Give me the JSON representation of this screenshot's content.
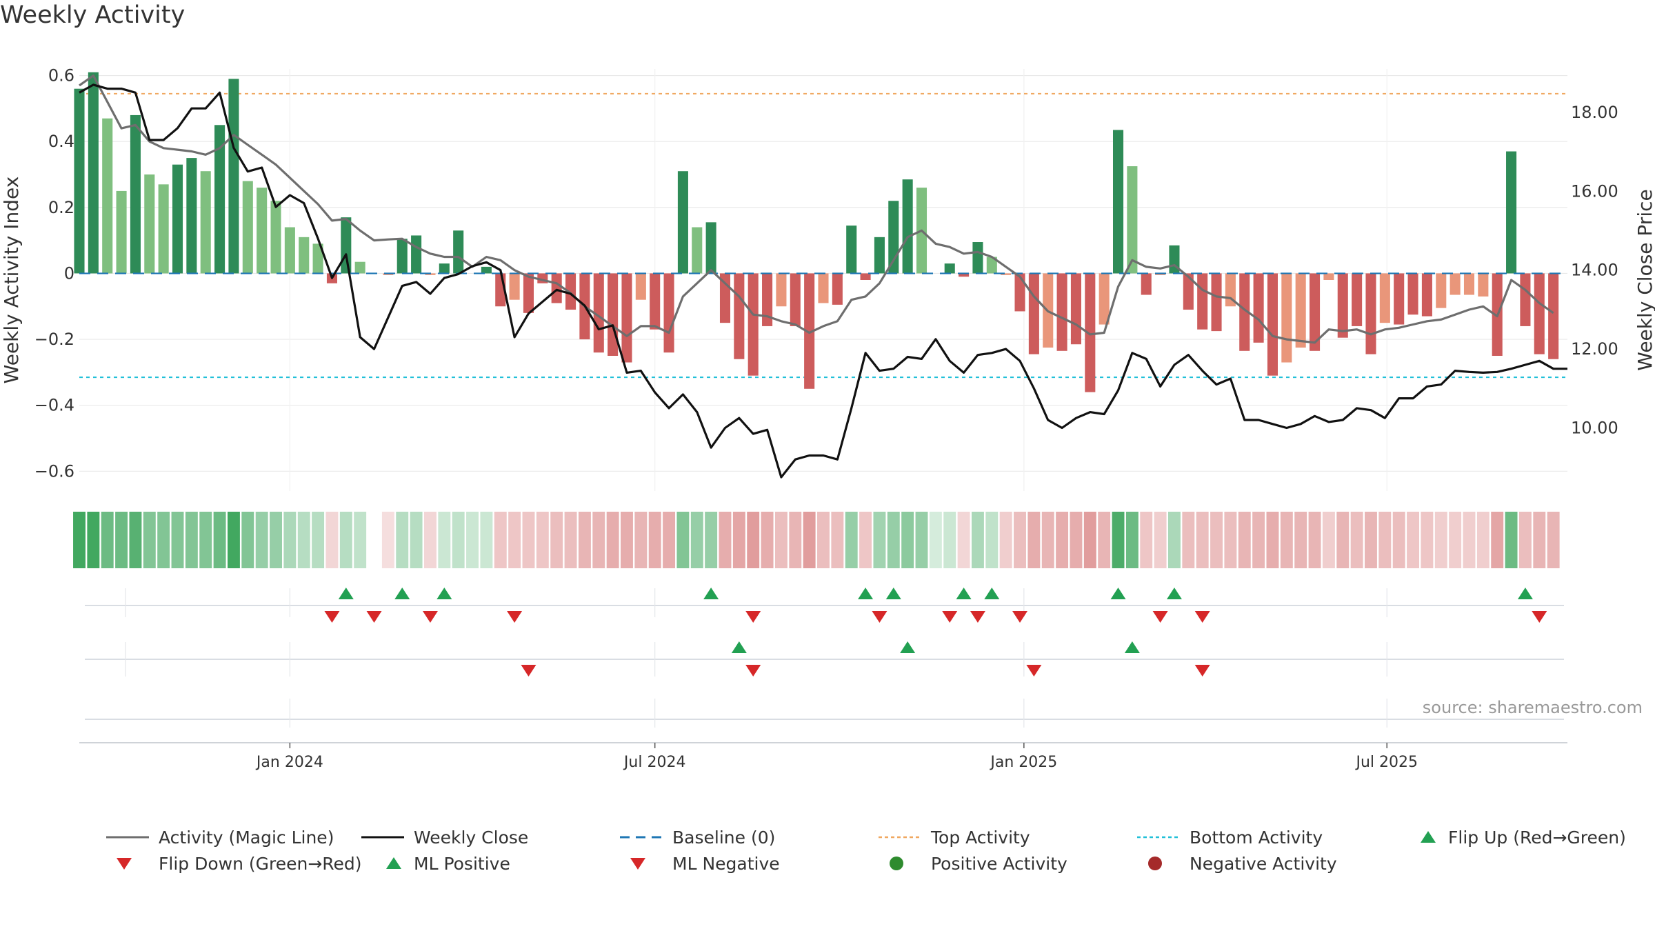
{
  "title": "Weekly Activity",
  "source_label": "source: sharemaestro.com",
  "colors": {
    "dark_green": "#2e8b57",
    "light_green": "#7fbf7f",
    "dark_red": "#cd5c5c",
    "light_red": "#e9967a",
    "magic_line": "#6e6e6e",
    "close_line": "#111111",
    "baseline": "#1f77b4",
    "top_activity": "#f0a860",
    "bottom_activity": "#22c0d8",
    "flip_up": "#22a052",
    "flip_down": "#d62728",
    "positive_dot": "#2e8b2e",
    "negative_dot": "#a52a2a"
  },
  "legend": [
    {
      "key": "magic",
      "label": "Activity (Magic Line)",
      "symbol": "line-solid-gray"
    },
    {
      "key": "close",
      "label": "Weekly Close",
      "symbol": "line-solid-black"
    },
    {
      "key": "baseline",
      "label": "Baseline (0)",
      "symbol": "line-dashed-blue"
    },
    {
      "key": "top",
      "label": "Top Activity",
      "symbol": "line-dotted-orange"
    },
    {
      "key": "bottom",
      "label": "Bottom Activity",
      "symbol": "line-dotted-cyan"
    },
    {
      "key": "flipup",
      "label": "Flip Up (Red→Green)",
      "symbol": "triangle-up-green"
    },
    {
      "key": "flipdown",
      "label": "Flip Down (Green→Red)",
      "symbol": "triangle-down-red"
    },
    {
      "key": "mlpos",
      "label": "ML Positive",
      "symbol": "triangle-up-green"
    },
    {
      "key": "mlneg",
      "label": "ML Negative",
      "symbol": "triangle-down-red"
    },
    {
      "key": "pos",
      "label": "Positive Activity",
      "symbol": "dot-green"
    },
    {
      "key": "neg",
      "label": "Negative Activity",
      "symbol": "dot-red"
    }
  ],
  "chart_data": {
    "type": "bar",
    "title": "Weekly Activity",
    "ylabel": "Weekly Activity Index",
    "y2label": "Weekly Close Price",
    "ylim": [
      -0.66,
      0.62
    ],
    "y2lim": [
      8.4,
      19.1
    ],
    "yticks": [
      -0.6,
      -0.4,
      -0.2,
      0,
      0.2,
      0.4,
      0.6
    ],
    "ytick_labels": [
      "−0.6",
      "−0.4",
      "−0.2",
      "0",
      "0.2",
      "0.4",
      "0.6"
    ],
    "y2ticks": [
      10,
      12,
      14,
      16,
      18
    ],
    "y2tick_labels": [
      "10.00",
      "12.00",
      "14.00",
      "16.00",
      "18.00"
    ],
    "x_start": "2023-09-18",
    "x_end": "2025-09-29",
    "first_week": "2023-09-18",
    "xticks": [
      {
        "date": "2024-01-01",
        "label": "Jan 2024"
      },
      {
        "date": "2024-07-01",
        "label": "Jul 2024"
      },
      {
        "date": "2025-01-01",
        "label": "Jan 2025"
      },
      {
        "date": "2025-07-01",
        "label": "Jul 2025"
      }
    ],
    "top_activity": 0.545,
    "bottom_activity": -0.315,
    "activity": [
      0.56,
      0.61,
      0.47,
      0.25,
      0.48,
      0.3,
      0.27,
      0.33,
      0.35,
      0.31,
      0.45,
      0.59,
      0.28,
      0.26,
      0.22,
      0.14,
      0.11,
      0.09,
      -0.03,
      0.17,
      0.035,
      0,
      -0.005,
      0.105,
      0.115,
      -0.005,
      0.03,
      0.13,
      0,
      0.02,
      -0.1,
      -0.08,
      -0.12,
      -0.03,
      -0.09,
      -0.11,
      -0.2,
      -0.24,
      -0.25,
      -0.27,
      -0.08,
      -0.17,
      -0.24,
      0.31,
      0.14,
      0.155,
      -0.15,
      -0.26,
      -0.31,
      -0.16,
      -0.1,
      -0.16,
      -0.35,
      -0.09,
      -0.095,
      0.145,
      -0.02,
      0.11,
      0.22,
      0.285,
      0.26,
      0,
      0.03,
      -0.01,
      0.095,
      0.05,
      -0.005,
      -0.115,
      -0.245,
      -0.225,
      -0.235,
      -0.215,
      -0.36,
      -0.155,
      0.435,
      0.325,
      -0.065,
      -0.005,
      0.085,
      -0.11,
      -0.17,
      -0.175,
      -0.1,
      -0.235,
      -0.21,
      -0.31,
      -0.27,
      -0.225,
      -0.235,
      -0.02,
      -0.195,
      -0.16,
      -0.245,
      -0.15,
      -0.155,
      -0.125,
      -0.13,
      -0.105,
      -0.065,
      -0.065,
      -0.07,
      -0.25,
      0.37,
      -0.16,
      -0.245,
      -0.26
    ],
    "strength": [
      1,
      1,
      0,
      0,
      1,
      0,
      0,
      1,
      1,
      0,
      1,
      1,
      0,
      0,
      0,
      0,
      0,
      0,
      1,
      1,
      0,
      0,
      0,
      1,
      1,
      0,
      1,
      1,
      0,
      1,
      1,
      0,
      1,
      1,
      1,
      1,
      1,
      1,
      1,
      1,
      0,
      1,
      1,
      1,
      0,
      1,
      1,
      1,
      1,
      1,
      0,
      1,
      1,
      0,
      1,
      1,
      1,
      1,
      1,
      1,
      0,
      0,
      1,
      1,
      1,
      0,
      0,
      1,
      1,
      0,
      1,
      1,
      1,
      0,
      1,
      0,
      1,
      0,
      1,
      1,
      1,
      1,
      0,
      1,
      1,
      1,
      0,
      0,
      1,
      0,
      1,
      1,
      1,
      0,
      1,
      1,
      1,
      0,
      0,
      0,
      0,
      1,
      1,
      1,
      1,
      1
    ],
    "magic": [
      0.57,
      0.6,
      0.52,
      0.44,
      0.45,
      0.4,
      0.38,
      0.375,
      0.37,
      0.36,
      0.38,
      0.42,
      0.39,
      0.36,
      0.33,
      0.29,
      0.25,
      0.21,
      0.16,
      0.165,
      0.13,
      0.1,
      0.103,
      0.105,
      0.08,
      0.06,
      0.05,
      0.05,
      0.02,
      0.05,
      0.04,
      0.01,
      -0.01,
      -0.02,
      -0.03,
      -0.06,
      -0.1,
      -0.13,
      -0.16,
      -0.19,
      -0.16,
      -0.16,
      -0.18,
      -0.07,
      -0.03,
      0.01,
      -0.03,
      -0.07,
      -0.125,
      -0.13,
      -0.145,
      -0.155,
      -0.18,
      -0.16,
      -0.145,
      -0.08,
      -0.07,
      -0.03,
      0.04,
      0.11,
      0.13,
      0.09,
      0.08,
      0.06,
      0.065,
      0.05,
      0.02,
      -0.01,
      -0.07,
      -0.115,
      -0.135,
      -0.155,
      -0.185,
      -0.18,
      -0.04,
      0.04,
      0.02,
      0.015,
      0.025,
      -0.01,
      -0.05,
      -0.07,
      -0.075,
      -0.11,
      -0.14,
      -0.19,
      -0.2,
      -0.205,
      -0.21,
      -0.17,
      -0.175,
      -0.17,
      -0.185,
      -0.17,
      -0.165,
      -0.155,
      -0.145,
      -0.14,
      -0.125,
      -0.11,
      -0.1,
      -0.13,
      -0.02,
      -0.05,
      -0.09,
      -0.12
    ],
    "close": [
      18.5,
      18.7,
      18.6,
      18.6,
      18.5,
      17.3,
      17.3,
      17.6,
      18.1,
      18.1,
      18.5,
      17.1,
      16.5,
      16.6,
      15.6,
      15.9,
      15.7,
      14.8,
      13.8,
      14.4,
      12.3,
      12,
      12.8,
      13.6,
      13.7,
      13.4,
      13.8,
      13.9,
      14.1,
      14.2,
      14,
      12.3,
      12.9,
      13.2,
      13.5,
      13.4,
      13.1,
      12.5,
      12.6,
      11.4,
      11.45,
      10.9,
      10.5,
      10.85,
      10.4,
      9.5,
      10,
      10.25,
      9.85,
      9.95,
      8.75,
      9.2,
      9.3,
      9.3,
      9.2,
      10.5,
      11.9,
      11.45,
      11.5,
      11.8,
      11.75,
      12.25,
      11.7,
      11.4,
      11.85,
      11.9,
      12,
      11.7,
      11,
      10.2,
      10,
      10.25,
      10.4,
      10.35,
      10.95,
      11.9,
      11.75,
      11.05,
      11.6,
      11.85,
      11.45,
      11.1,
      11.25,
      10.2,
      10.2,
      10.1,
      10,
      10.1,
      10.3,
      10.15,
      10.2,
      10.5,
      10.45,
      10.25,
      10.75,
      10.75,
      11.05,
      11.1,
      11.45,
      11.42,
      11.4,
      11.42,
      11.5,
      11.6,
      11.7,
      11.5,
      11.5
    ],
    "heat_opacity": [
      0.9,
      0.9,
      0.7,
      0.7,
      0.8,
      0.6,
      0.6,
      0.6,
      0.6,
      0.6,
      0.7,
      0.9,
      0.6,
      0.5,
      0.5,
      0.4,
      0.35,
      0.35,
      0.25,
      0.35,
      0.3,
      0,
      0.2,
      0.35,
      0.35,
      0.25,
      0.25,
      0.3,
      0.25,
      0.25,
      0.35,
      0.35,
      0.35,
      0.35,
      0.4,
      0.4,
      0.45,
      0.45,
      0.5,
      0.5,
      0.45,
      0.5,
      0.5,
      0.6,
      0.5,
      0.5,
      0.5,
      0.55,
      0.6,
      0.5,
      0.4,
      0.45,
      0.6,
      0.4,
      0.4,
      0.5,
      0.35,
      0.45,
      0.5,
      0.55,
      0.5,
      0.2,
      0.25,
      0.25,
      0.4,
      0.3,
      0.3,
      0.4,
      0.5,
      0.45,
      0.5,
      0.5,
      0.6,
      0.45,
      0.85,
      0.7,
      0.35,
      0.3,
      0.4,
      0.4,
      0.4,
      0.4,
      0.4,
      0.45,
      0.45,
      0.5,
      0.45,
      0.45,
      0.45,
      0.3,
      0.45,
      0.4,
      0.45,
      0.4,
      0.4,
      0.35,
      0.35,
      0.3,
      0.3,
      0.3,
      0.3,
      0.55,
      0.7,
      0.4,
      0.45,
      0.45
    ],
    "flip_up_weeks": [
      19,
      23,
      26,
      45,
      56,
      58,
      63,
      65,
      74,
      78,
      103
    ],
    "flip_down_weeks": [
      18,
      21,
      25,
      31,
      48,
      57,
      62,
      64,
      67,
      77,
      80,
      104
    ],
    "ml_positive_weeks": [
      47,
      59,
      75
    ],
    "ml_negative_weeks": [
      32,
      48,
      68,
      80
    ],
    "lane_ticks": [
      "Jan 2024",
      "Jul 2024",
      "Jan 2025",
      "Jul 2025"
    ]
  }
}
